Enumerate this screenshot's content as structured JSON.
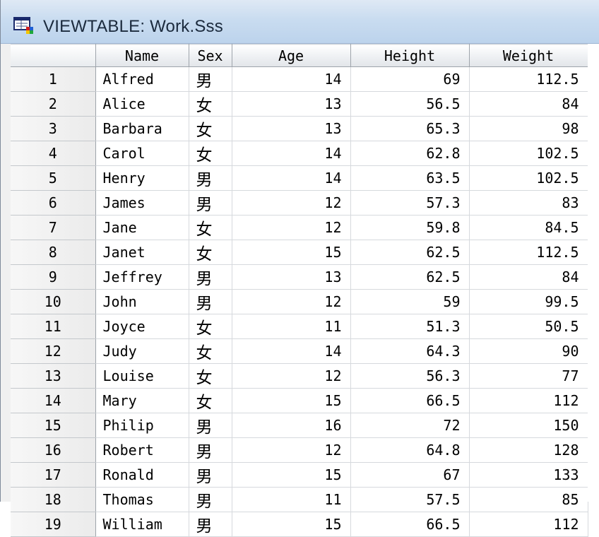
{
  "window": {
    "title": "VIEWTABLE: Work.Sss",
    "icon": "sas-viewtable-app-icon"
  },
  "table": {
    "columns": [
      "Name",
      "Sex",
      "Age",
      "Height",
      "Weight"
    ],
    "rows": [
      {
        "n": "1",
        "name": "Alfred",
        "sex": "男",
        "age": "14",
        "height": "69",
        "weight": "112.5"
      },
      {
        "n": "2",
        "name": "Alice",
        "sex": "女",
        "age": "13",
        "height": "56.5",
        "weight": "84"
      },
      {
        "n": "3",
        "name": "Barbara",
        "sex": "女",
        "age": "13",
        "height": "65.3",
        "weight": "98"
      },
      {
        "n": "4",
        "name": "Carol",
        "sex": "女",
        "age": "14",
        "height": "62.8",
        "weight": "102.5"
      },
      {
        "n": "5",
        "name": "Henry",
        "sex": "男",
        "age": "14",
        "height": "63.5",
        "weight": "102.5"
      },
      {
        "n": "6",
        "name": "James",
        "sex": "男",
        "age": "12",
        "height": "57.3",
        "weight": "83"
      },
      {
        "n": "7",
        "name": "Jane",
        "sex": "女",
        "age": "12",
        "height": "59.8",
        "weight": "84.5"
      },
      {
        "n": "8",
        "name": "Janet",
        "sex": "女",
        "age": "15",
        "height": "62.5",
        "weight": "112.5"
      },
      {
        "n": "9",
        "name": "Jeffrey",
        "sex": "男",
        "age": "13",
        "height": "62.5",
        "weight": "84"
      },
      {
        "n": "10",
        "name": "John",
        "sex": "男",
        "age": "12",
        "height": "59",
        "weight": "99.5"
      },
      {
        "n": "11",
        "name": "Joyce",
        "sex": "女",
        "age": "11",
        "height": "51.3",
        "weight": "50.5"
      },
      {
        "n": "12",
        "name": "Judy",
        "sex": "女",
        "age": "14",
        "height": "64.3",
        "weight": "90"
      },
      {
        "n": "13",
        "name": "Louise",
        "sex": "女",
        "age": "12",
        "height": "56.3",
        "weight": "77"
      },
      {
        "n": "14",
        "name": "Mary",
        "sex": "女",
        "age": "15",
        "height": "66.5",
        "weight": "112"
      },
      {
        "n": "15",
        "name": "Philip",
        "sex": "男",
        "age": "16",
        "height": "72",
        "weight": "150"
      },
      {
        "n": "16",
        "name": "Robert",
        "sex": "男",
        "age": "12",
        "height": "64.8",
        "weight": "128"
      },
      {
        "n": "17",
        "name": "Ronald",
        "sex": "男",
        "age": "15",
        "height": "67",
        "weight": "133"
      },
      {
        "n": "18",
        "name": "Thomas",
        "sex": "男",
        "age": "11",
        "height": "57.5",
        "weight": "85"
      },
      {
        "n": "19",
        "name": "William",
        "sex": "男",
        "age": "15",
        "height": "66.5",
        "weight": "112"
      }
    ]
  }
}
